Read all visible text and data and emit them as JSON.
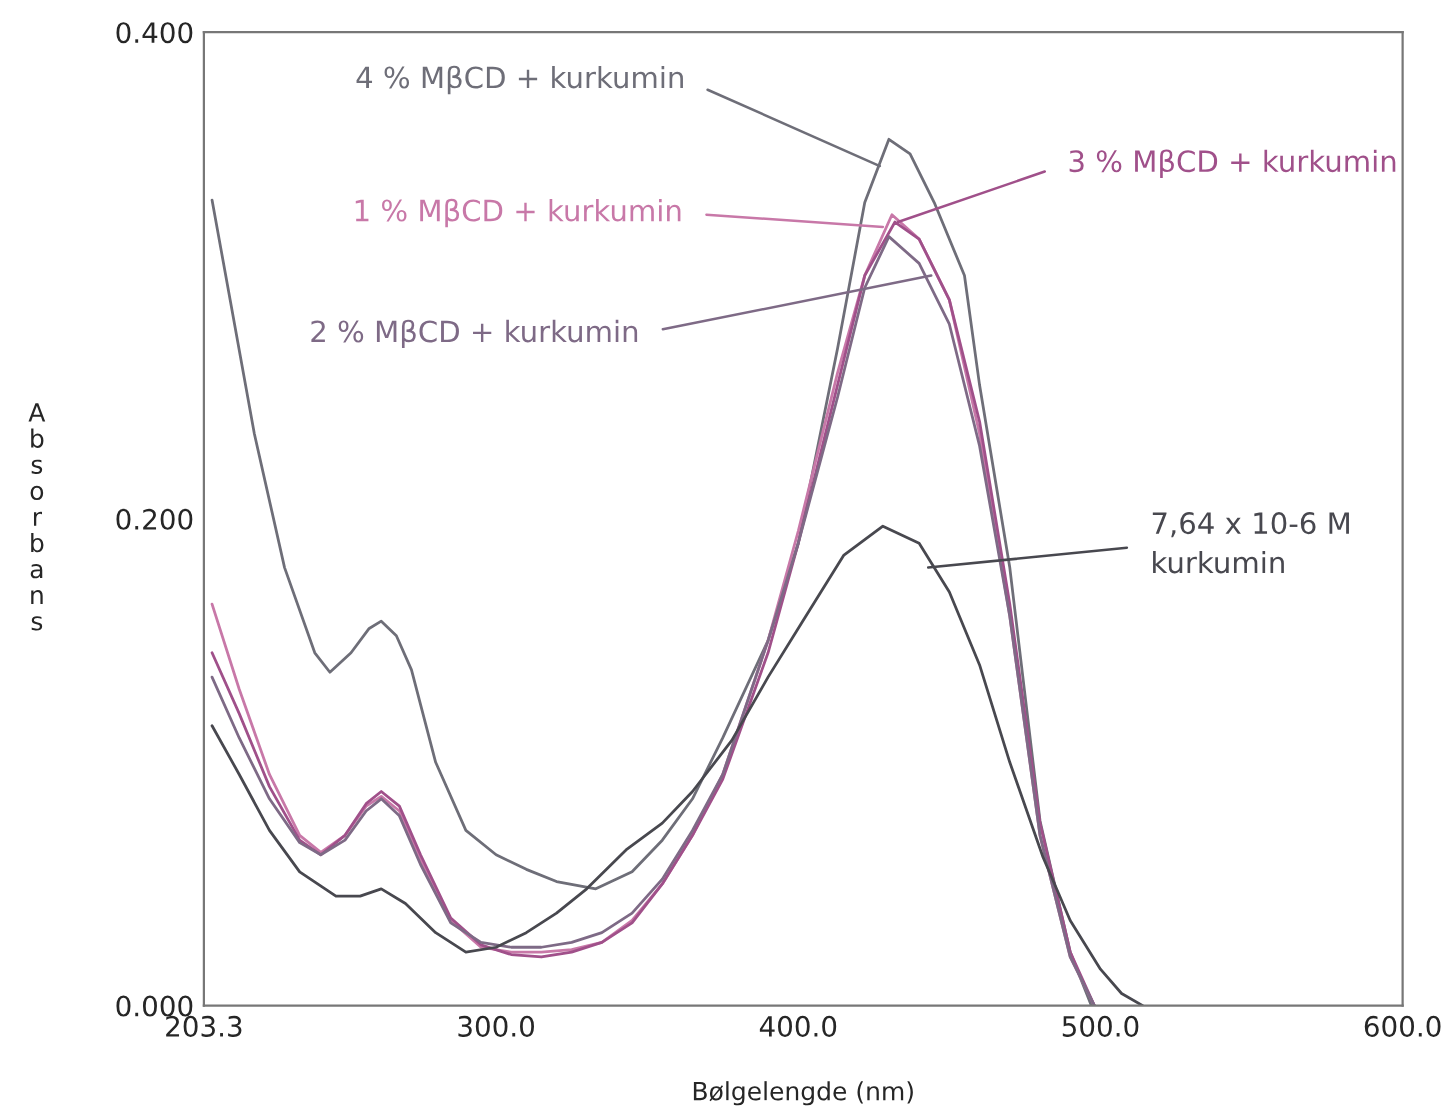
{
  "chart_data": {
    "type": "line",
    "xlabel": "Bølgelengde (nm)",
    "ylabel": "Absorbans",
    "xlim": [
      203.3,
      600.0
    ],
    "ylim": [
      0,
      0.4
    ],
    "xticks": [
      {
        "value": 203.3,
        "label": "203.3"
      },
      {
        "value": 300,
        "label": "300.0"
      },
      {
        "value": 400,
        "label": "400.0"
      },
      {
        "value": 500,
        "label": "500.0"
      },
      {
        "value": 600,
        "label": "600.0"
      }
    ],
    "yticks": [
      {
        "value": 0,
        "label": "0.000"
      },
      {
        "value": 0.2,
        "label": "0.200"
      },
      {
        "value": 0.4,
        "label": "0.400"
      }
    ],
    "grid": false,
    "legend": false,
    "series": [
      {
        "name": "4 % MβCD + kurkumin",
        "color": "#6e6e78",
        "x": [
          206,
          212,
          220,
          230,
          240,
          245,
          252,
          258,
          262,
          267,
          272,
          280,
          290,
          300,
          310,
          320,
          333,
          345,
          355,
          365,
          375,
          390,
          400,
          413,
          422,
          430,
          437,
          445,
          455,
          460,
          470,
          480,
          490,
          497
        ],
        "values": [
          0.331,
          0.29,
          0.235,
          0.18,
          0.145,
          0.137,
          0.145,
          0.155,
          0.158,
          0.152,
          0.138,
          0.1,
          0.072,
          0.062,
          0.056,
          0.051,
          0.048,
          0.055,
          0.068,
          0.085,
          0.11,
          0.15,
          0.19,
          0.27,
          0.33,
          0.356,
          0.35,
          0.33,
          0.3,
          0.255,
          0.18,
          0.076,
          0.022,
          0
        ]
      },
      {
        "name": "1 % MβCD + kurkumin",
        "color": "#c878a8",
        "x": [
          206,
          215,
          225,
          235,
          242,
          250,
          257,
          262,
          268,
          275,
          285,
          295,
          305,
          315,
          325,
          335,
          345,
          355,
          365,
          375,
          390,
          400,
          413,
          422,
          431,
          440,
          450,
          460,
          470,
          480,
          490,
          498
        ],
        "values": [
          0.165,
          0.13,
          0.095,
          0.07,
          0.063,
          0.07,
          0.082,
          0.086,
          0.08,
          0.06,
          0.035,
          0.024,
          0.022,
          0.022,
          0.023,
          0.026,
          0.035,
          0.05,
          0.07,
          0.095,
          0.15,
          0.195,
          0.26,
          0.3,
          0.325,
          0.315,
          0.29,
          0.235,
          0.16,
          0.07,
          0.02,
          0
        ]
      },
      {
        "name": "3 % MβCD + kurkumin",
        "color": "#a0508a",
        "x": [
          206,
          215,
          225,
          235,
          242,
          250,
          257,
          262,
          268,
          275,
          285,
          295,
          305,
          315,
          325,
          335,
          345,
          355,
          365,
          375,
          390,
          400,
          413,
          422,
          432,
          440,
          450,
          460,
          470,
          480,
          490,
          498
        ],
        "values": [
          0.145,
          0.12,
          0.09,
          0.068,
          0.062,
          0.07,
          0.083,
          0.088,
          0.082,
          0.062,
          0.036,
          0.025,
          0.021,
          0.02,
          0.022,
          0.026,
          0.034,
          0.05,
          0.07,
          0.093,
          0.145,
          0.19,
          0.255,
          0.3,
          0.322,
          0.315,
          0.29,
          0.24,
          0.165,
          0.075,
          0.022,
          0
        ]
      },
      {
        "name": "2 % MβCD + kurkumin",
        "color": "#7e6a86",
        "x": [
          206,
          215,
          225,
          235,
          242,
          250,
          257,
          262,
          268,
          275,
          285,
          295,
          305,
          315,
          325,
          335,
          345,
          355,
          365,
          375,
          390,
          400,
          413,
          422,
          430,
          440,
          450,
          460,
          470,
          480,
          490,
          498
        ],
        "values": [
          0.135,
          0.11,
          0.085,
          0.067,
          0.062,
          0.068,
          0.08,
          0.085,
          0.078,
          0.058,
          0.034,
          0.026,
          0.024,
          0.024,
          0.026,
          0.03,
          0.038,
          0.052,
          0.072,
          0.095,
          0.15,
          0.19,
          0.25,
          0.295,
          0.316,
          0.305,
          0.28,
          0.23,
          0.16,
          0.07,
          0.02,
          0
        ]
      },
      {
        "name": "7,64 x 10-6 M\nkurkumin",
        "color": "#48484f",
        "x": [
          206,
          215,
          225,
          235,
          247,
          255,
          262,
          270,
          280,
          290,
          300,
          310,
          320,
          330,
          343,
          355,
          365,
          378,
          390,
          401,
          415,
          428,
          440,
          450,
          460,
          470,
          481,
          490,
          500,
          507,
          514
        ],
        "values": [
          0.115,
          0.095,
          0.072,
          0.055,
          0.045,
          0.045,
          0.048,
          0.042,
          0.03,
          0.022,
          0.024,
          0.03,
          0.038,
          0.048,
          0.064,
          0.075,
          0.088,
          0.109,
          0.135,
          0.157,
          0.185,
          0.197,
          0.19,
          0.17,
          0.14,
          0.1,
          0.061,
          0.035,
          0.015,
          0.005,
          0
        ]
      }
    ]
  }
}
